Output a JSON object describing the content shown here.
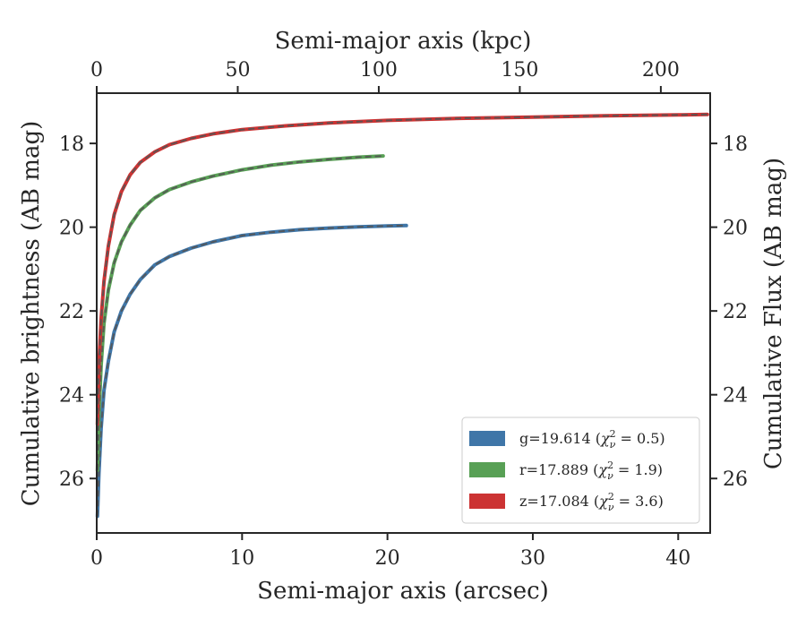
{
  "chart_data": {
    "type": "line",
    "xlabel": "Semi-major axis (arcsec)",
    "ylabel": "Cumulative brightness (AB mag)",
    "top_xlabel": "Semi-major axis (kpc)",
    "right_ylabel": "Cumulative Flux (AB mag)",
    "xlim": [
      0,
      42.2
    ],
    "ylim": [
      27.3,
      16.8
    ],
    "y_inverted": true,
    "top_xlim": [
      0,
      217.5
    ],
    "xticks": [
      0,
      10,
      20,
      30,
      40
    ],
    "yticks": [
      18,
      20,
      22,
      24,
      26
    ],
    "top_xticks": [
      0,
      50,
      100,
      150,
      200
    ],
    "grid": false,
    "legend_position": "lower-right",
    "series": [
      {
        "name": "g",
        "label_prefix": "g=19.614 (",
        "chi_value": "0.5",
        "color": "#3f76a8",
        "model_color": "#555555",
        "x": [
          0.05,
          0.15,
          0.3,
          0.5,
          0.8,
          1.2,
          1.7,
          2.3,
          3.0,
          4.0,
          5.0,
          6.5,
          8.0,
          10.0,
          12.0,
          14.0,
          16.0,
          18.0,
          20.0,
          21.3
        ],
        "values": [
          26.9,
          25.9,
          24.8,
          23.9,
          23.2,
          22.5,
          22.0,
          21.6,
          21.25,
          20.9,
          20.7,
          20.5,
          20.35,
          20.2,
          20.12,
          20.06,
          20.02,
          19.99,
          19.97,
          19.96
        ]
      },
      {
        "name": "r",
        "label_prefix": "r=17.889 (",
        "chi_value": "1.9",
        "color": "#58a055",
        "model_color": "#555555",
        "x": [
          0.05,
          0.15,
          0.3,
          0.5,
          0.8,
          1.2,
          1.7,
          2.3,
          3.0,
          4.0,
          5.0,
          6.5,
          8.0,
          10.0,
          12.0,
          14.0,
          16.0,
          18.0,
          19.7
        ],
        "values": [
          25.8,
          24.5,
          23.3,
          22.3,
          21.5,
          20.85,
          20.35,
          19.95,
          19.6,
          19.3,
          19.1,
          18.92,
          18.78,
          18.63,
          18.52,
          18.44,
          18.38,
          18.33,
          18.3
        ]
      },
      {
        "name": "z",
        "label_prefix": "z=17.084 (",
        "chi_value": "3.6",
        "color": "#cc3333",
        "model_color": "#555555",
        "x": [
          0.05,
          0.15,
          0.3,
          0.5,
          0.8,
          1.2,
          1.7,
          2.3,
          3.0,
          4.0,
          5.0,
          6.5,
          8.0,
          10.0,
          13.0,
          16.0,
          20.0,
          25.0,
          30.0,
          35.0,
          40.0,
          42.0
        ],
        "values": [
          24.7,
          23.3,
          22.2,
          21.3,
          20.45,
          19.7,
          19.15,
          18.75,
          18.45,
          18.2,
          18.03,
          17.88,
          17.77,
          17.67,
          17.58,
          17.51,
          17.45,
          17.4,
          17.37,
          17.34,
          17.32,
          17.31
        ]
      }
    ]
  }
}
